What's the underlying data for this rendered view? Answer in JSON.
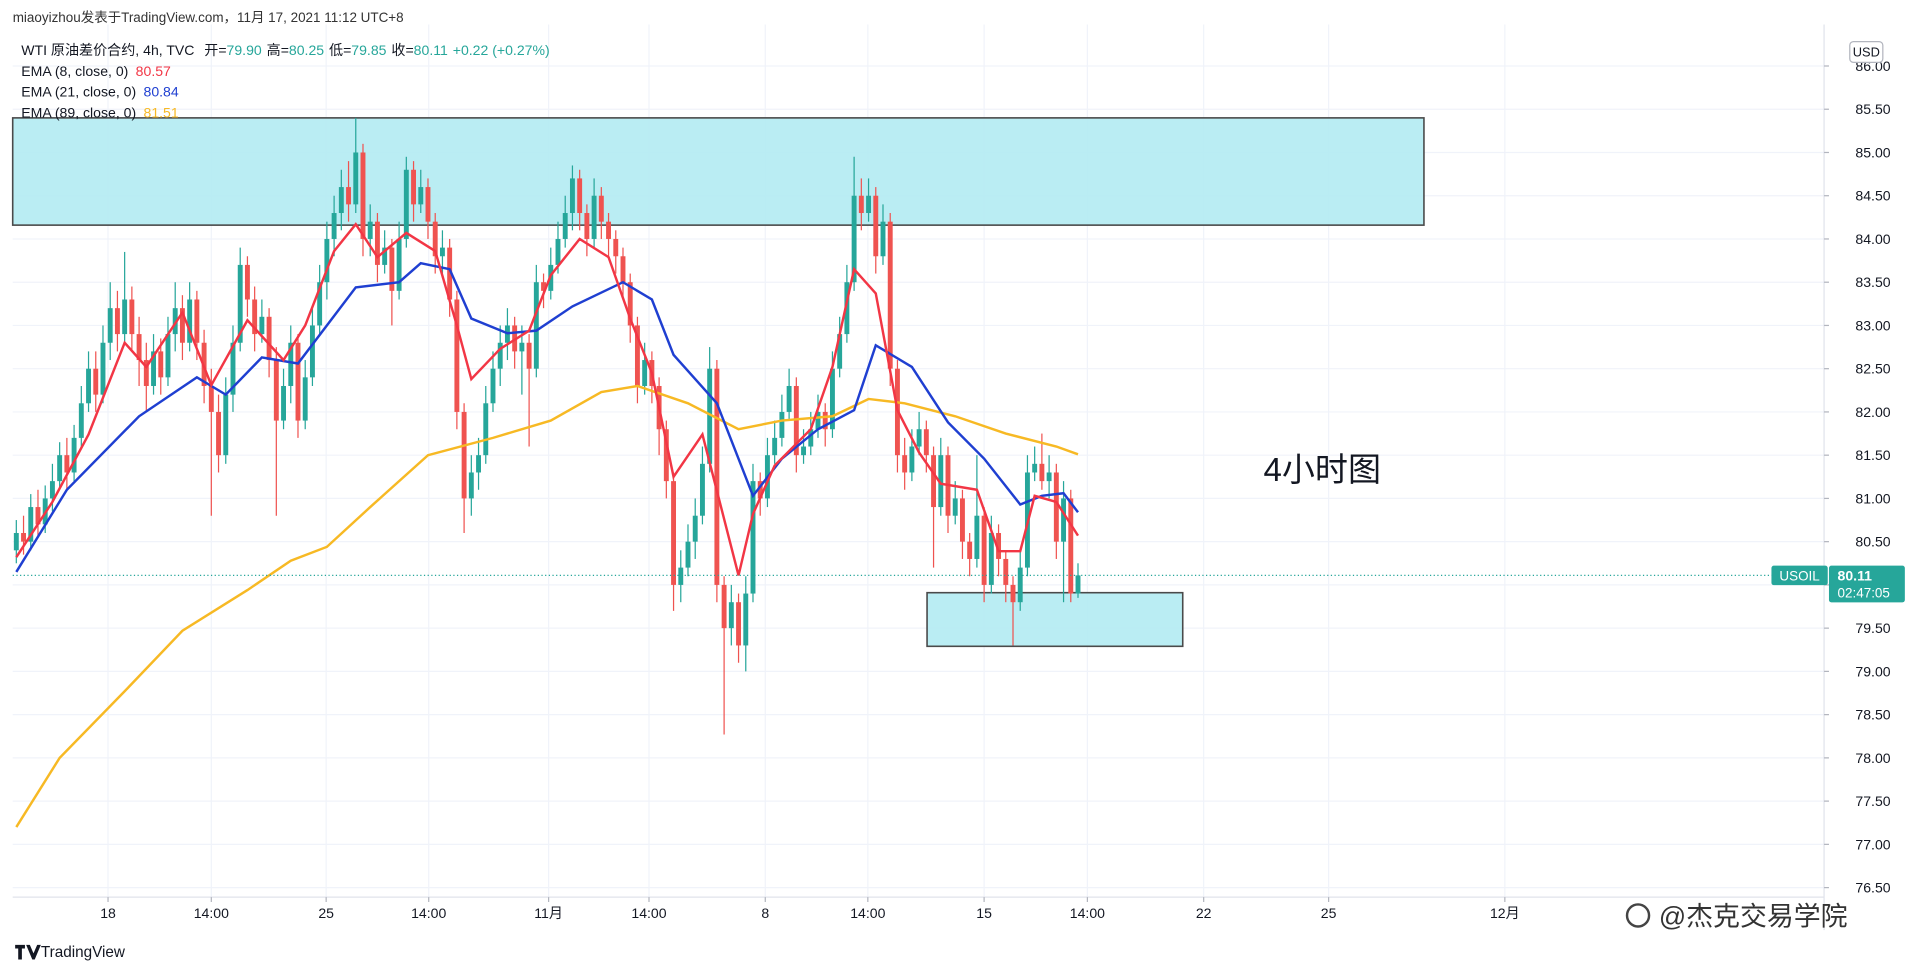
{
  "chart_data": {
    "type": "candlestick",
    "header": "miaoyizhou发表于TradingView.com，11月 17, 2021 11:12 UTC+8",
    "legend": {
      "symbol": "WTI 原油差价合约, 4h, TVC",
      "open_label": "开=",
      "open": "79.90",
      "high_label": "高=",
      "high": "80.25",
      "low_label": "低=",
      "low": "79.85",
      "close_label": "收=",
      "close": "80.11",
      "change": "+0.22 (+0.27%)"
    },
    "currency": "USD",
    "annotation": "4小时图",
    "symbol_badge": "USOIL",
    "last_price": 80.11,
    "countdown": "02:47:05",
    "branding": "TradingView",
    "watermark": "@杰克交易学院",
    "up_color": "#26a69a",
    "down_color": "#ef5350",
    "grid": true,
    "xlim": [
      -0.5,
      250.3
    ],
    "ylim": [
      76.39,
      86.48
    ],
    "yticks": [
      {
        "value": 76.5,
        "label": "76.50"
      },
      {
        "value": 77,
        "label": "77.00"
      },
      {
        "value": 77.5,
        "label": "77.50"
      },
      {
        "value": 78,
        "label": "78.00"
      },
      {
        "value": 78.5,
        "label": "78.50"
      },
      {
        "value": 79,
        "label": "79.00"
      },
      {
        "value": 79.5,
        "label": "79.50"
      },
      {
        "value": 80,
        "label": "80.00"
      },
      {
        "value": 80.5,
        "label": "80.50"
      },
      {
        "value": 81,
        "label": "81.00"
      },
      {
        "value": 81.5,
        "label": "81.50"
      },
      {
        "value": 82,
        "label": "82.00"
      },
      {
        "value": 82.5,
        "label": "82.50"
      },
      {
        "value": 83,
        "label": "83.00"
      },
      {
        "value": 83.5,
        "label": "83.50"
      },
      {
        "value": 84,
        "label": "84.00"
      },
      {
        "value": 84.5,
        "label": "84.50"
      },
      {
        "value": 85,
        "label": "85.00"
      },
      {
        "value": 85.5,
        "label": "85.50"
      },
      {
        "value": 86,
        "label": "86.00"
      }
    ],
    "xticks": [
      {
        "value": 12.7,
        "label": "18"
      },
      {
        "value": 27,
        "label": "14:00"
      },
      {
        "value": 42.9,
        "label": "25"
      },
      {
        "value": 57.1,
        "label": "14:00"
      },
      {
        "value": 73.7,
        "label": "11月"
      },
      {
        "value": 87.6,
        "label": "14:00"
      },
      {
        "value": 103.7,
        "label": "8"
      },
      {
        "value": 117.9,
        "label": "14:00"
      },
      {
        "value": 134,
        "label": "15"
      },
      {
        "value": 148.3,
        "label": "14:00"
      },
      {
        "value": 164.4,
        "label": "22"
      },
      {
        "value": 181.7,
        "label": "25"
      },
      {
        "value": 206.1,
        "label": "12月"
      }
    ],
    "zones": [
      {
        "x": [
          -0.5,
          194.9
        ],
        "y": [
          84.16,
          85.4
        ],
        "color": "#b2ebf2"
      },
      {
        "x": [
          126.1,
          161.5
        ],
        "y": [
          79.29,
          79.91
        ],
        "color": "#b2ebf2"
      }
    ],
    "ohlc": [
      [
        80.4,
        80.75,
        80.25,
        80.6
      ],
      [
        80.6,
        80.8,
        80.35,
        80.5
      ],
      [
        80.5,
        81.05,
        80.4,
        80.9
      ],
      [
        80.9,
        81.1,
        80.55,
        80.7
      ],
      [
        80.7,
        81.15,
        80.6,
        81.0
      ],
      [
        81.0,
        81.4,
        80.85,
        81.2
      ],
      [
        81.2,
        81.65,
        81.1,
        81.5
      ],
      [
        81.5,
        81.7,
        81.1,
        81.3
      ],
      [
        81.3,
        81.85,
        81.2,
        81.7
      ],
      [
        81.7,
        82.3,
        81.6,
        82.1
      ],
      [
        82.1,
        82.7,
        82.0,
        82.5
      ],
      [
        82.5,
        82.7,
        82.0,
        82.2
      ],
      [
        82.2,
        83.0,
        82.1,
        82.8
      ],
      [
        82.8,
        83.5,
        82.6,
        83.2
      ],
      [
        83.2,
        83.4,
        82.7,
        82.9
      ],
      [
        82.9,
        83.85,
        82.8,
        83.3
      ],
      [
        83.3,
        83.45,
        82.7,
        82.9
      ],
      [
        82.9,
        83.1,
        82.3,
        82.6
      ],
      [
        82.6,
        82.8,
        82.0,
        82.3
      ],
      [
        82.3,
        82.9,
        82.2,
        82.7
      ],
      [
        82.7,
        82.85,
        82.2,
        82.4
      ],
      [
        82.4,
        83.1,
        82.3,
        82.9
      ],
      [
        82.9,
        83.5,
        82.7,
        83.2
      ],
      [
        83.2,
        83.35,
        82.6,
        82.8
      ],
      [
        82.8,
        83.5,
        82.7,
        83.3
      ],
      [
        83.3,
        83.4,
        82.6,
        82.8
      ],
      [
        82.8,
        82.95,
        82.1,
        82.3
      ],
      [
        82.3,
        82.5,
        80.8,
        82.0
      ],
      [
        82.0,
        82.2,
        81.3,
        81.5
      ],
      [
        81.5,
        82.4,
        81.4,
        82.2
      ],
      [
        82.2,
        83.0,
        82.0,
        82.8
      ],
      [
        82.8,
        83.9,
        82.7,
        83.7
      ],
      [
        83.7,
        83.8,
        83.1,
        83.3
      ],
      [
        83.3,
        83.45,
        82.7,
        82.9
      ],
      [
        82.9,
        83.3,
        82.8,
        83.1
      ],
      [
        83.1,
        83.2,
        82.4,
        82.6
      ],
      [
        82.6,
        82.75,
        80.8,
        81.9
      ],
      [
        81.9,
        82.5,
        81.8,
        82.3
      ],
      [
        82.3,
        83.0,
        82.1,
        82.8
      ],
      [
        82.8,
        82.9,
        81.7,
        81.9
      ],
      [
        81.9,
        82.6,
        81.8,
        82.4
      ],
      [
        82.4,
        83.2,
        82.3,
        83.0
      ],
      [
        83.0,
        83.7,
        82.9,
        83.5
      ],
      [
        83.5,
        84.2,
        83.3,
        84.0
      ],
      [
        84.0,
        84.5,
        83.8,
        84.3
      ],
      [
        84.3,
        84.8,
        84.1,
        84.6
      ],
      [
        84.6,
        84.9,
        84.2,
        84.4
      ],
      [
        84.4,
        85.4,
        84.3,
        85.0
      ],
      [
        85.0,
        85.1,
        83.8,
        84.0
      ],
      [
        84.0,
        84.4,
        83.8,
        84.2
      ],
      [
        84.2,
        84.3,
        83.5,
        83.7
      ],
      [
        83.7,
        84.1,
        83.6,
        83.9
      ],
      [
        83.9,
        84.0,
        83.0,
        83.4
      ],
      [
        83.4,
        84.2,
        83.3,
        84.0
      ],
      [
        84.0,
        84.95,
        83.9,
        84.8
      ],
      [
        84.8,
        84.9,
        84.2,
        84.4
      ],
      [
        84.4,
        84.8,
        84.3,
        84.6
      ],
      [
        84.6,
        84.7,
        84.0,
        84.2
      ],
      [
        84.2,
        84.3,
        83.6,
        83.8
      ],
      [
        83.8,
        84.1,
        83.6,
        83.9
      ],
      [
        83.9,
        84.0,
        83.1,
        83.3
      ],
      [
        83.3,
        83.4,
        81.8,
        82.0
      ],
      [
        82.0,
        82.1,
        80.6,
        81.0
      ],
      [
        81.0,
        81.5,
        80.8,
        81.3
      ],
      [
        81.3,
        81.7,
        81.1,
        81.5
      ],
      [
        81.5,
        82.3,
        81.4,
        82.1
      ],
      [
        82.1,
        82.7,
        82.0,
        82.5
      ],
      [
        82.5,
        83.0,
        82.3,
        82.8
      ],
      [
        82.8,
        83.2,
        82.6,
        83.0
      ],
      [
        83.0,
        83.1,
        82.5,
        82.7
      ],
      [
        82.7,
        83.0,
        82.2,
        82.8
      ],
      [
        82.8,
        82.9,
        81.6,
        82.5
      ],
      [
        82.5,
        83.7,
        82.4,
        83.5
      ],
      [
        83.5,
        83.6,
        83.2,
        83.4
      ],
      [
        83.4,
        83.9,
        83.3,
        83.7
      ],
      [
        83.7,
        84.2,
        83.6,
        84.0
      ],
      [
        84.0,
        84.5,
        83.9,
        84.3
      ],
      [
        84.3,
        84.85,
        84.1,
        84.7
      ],
      [
        84.7,
        84.8,
        84.1,
        84.3
      ],
      [
        84.3,
        84.4,
        83.8,
        84.0
      ],
      [
        84.0,
        84.7,
        83.9,
        84.5
      ],
      [
        84.5,
        84.6,
        84.0,
        84.2
      ],
      [
        84.2,
        84.3,
        83.8,
        84.0
      ],
      [
        84.0,
        84.1,
        83.6,
        83.8
      ],
      [
        83.8,
        83.9,
        83.3,
        83.5
      ],
      [
        83.5,
        83.6,
        82.8,
        83.0
      ],
      [
        83.0,
        83.1,
        82.1,
        82.3
      ],
      [
        82.3,
        82.8,
        82.2,
        82.6
      ],
      [
        82.6,
        82.7,
        82.1,
        82.3
      ],
      [
        82.3,
        82.4,
        81.5,
        81.8
      ],
      [
        81.8,
        81.9,
        81.0,
        81.2
      ],
      [
        81.2,
        81.3,
        79.7,
        80.0
      ],
      [
        80.0,
        80.4,
        79.8,
        80.2
      ],
      [
        80.2,
        80.7,
        80.1,
        80.5
      ],
      [
        80.5,
        81.0,
        80.3,
        80.8
      ],
      [
        80.8,
        81.6,
        80.7,
        81.4
      ],
      [
        81.4,
        82.75,
        81.3,
        82.5
      ],
      [
        82.5,
        82.6,
        79.8,
        80.0
      ],
      [
        80.0,
        80.1,
        78.27,
        79.5
      ],
      [
        79.5,
        80.0,
        79.3,
        79.8
      ],
      [
        79.8,
        79.9,
        79.1,
        79.3
      ],
      [
        79.3,
        80.1,
        79.0,
        79.9
      ],
      [
        79.9,
        81.4,
        79.8,
        81.2
      ],
      [
        81.2,
        81.3,
        80.8,
        81.0
      ],
      [
        81.0,
        81.7,
        80.9,
        81.5
      ],
      [
        81.5,
        81.9,
        81.4,
        81.7
      ],
      [
        81.7,
        82.2,
        81.6,
        82.0
      ],
      [
        82.0,
        82.5,
        81.9,
        82.3
      ],
      [
        82.3,
        82.4,
        81.3,
        81.5
      ],
      [
        81.5,
        81.8,
        81.4,
        81.6
      ],
      [
        81.6,
        82.0,
        81.5,
        81.8
      ],
      [
        81.8,
        82.2,
        81.7,
        82.0
      ],
      [
        82.0,
        82.1,
        81.6,
        81.8
      ],
      [
        81.8,
        82.7,
        81.7,
        82.5
      ],
      [
        82.5,
        83.1,
        82.4,
        82.9
      ],
      [
        82.9,
        83.7,
        82.8,
        83.5
      ],
      [
        83.5,
        84.95,
        83.4,
        84.5
      ],
      [
        84.5,
        84.7,
        84.1,
        84.3
      ],
      [
        84.3,
        84.7,
        84.2,
        84.5
      ],
      [
        84.5,
        84.6,
        83.6,
        83.8
      ],
      [
        83.8,
        84.4,
        83.7,
        84.2
      ],
      [
        84.2,
        84.3,
        82.3,
        82.5
      ],
      [
        82.5,
        82.6,
        81.3,
        81.5
      ],
      [
        81.5,
        81.7,
        81.1,
        81.3
      ],
      [
        81.3,
        81.8,
        81.2,
        81.6
      ],
      [
        81.6,
        82.0,
        81.5,
        81.8
      ],
      [
        81.8,
        81.9,
        81.3,
        81.5
      ],
      [
        81.5,
        81.6,
        80.2,
        80.9
      ],
      [
        80.9,
        81.7,
        80.8,
        81.5
      ],
      [
        81.5,
        81.6,
        80.6,
        80.8
      ],
      [
        80.8,
        81.2,
        80.7,
        81.0
      ],
      [
        81.0,
        81.1,
        80.3,
        80.5
      ],
      [
        80.5,
        80.6,
        80.1,
        80.3
      ],
      [
        80.3,
        81.5,
        80.2,
        80.8
      ],
      [
        80.8,
        80.9,
        79.8,
        80.0
      ],
      [
        80.0,
        80.8,
        79.9,
        80.6
      ],
      [
        80.6,
        80.7,
        80.1,
        80.3
      ],
      [
        80.3,
        80.4,
        79.8,
        80.0
      ],
      [
        80.0,
        80.1,
        79.3,
        79.8
      ],
      [
        79.8,
        80.4,
        79.7,
        80.2
      ],
      [
        80.2,
        81.5,
        80.1,
        81.3
      ],
      [
        81.3,
        81.6,
        81.2,
        81.4
      ],
      [
        81.4,
        81.75,
        81.1,
        81.2
      ],
      [
        81.2,
        81.5,
        81.0,
        81.3
      ],
      [
        81.3,
        81.4,
        80.3,
        80.5
      ],
      [
        80.5,
        81.2,
        79.8,
        81.0
      ],
      [
        81.0,
        81.1,
        79.8,
        79.9
      ],
      [
        79.9,
        80.25,
        79.85,
        80.11
      ]
    ],
    "series": [
      {
        "name": "EMA (89, close, 0)",
        "color": "#f7b924",
        "legend_value": "81.51",
        "x": [
          0,
          6,
          15,
          23,
          32,
          38,
          43,
          49,
          57,
          66,
          74,
          81,
          86,
          93,
          100,
          106,
          113,
          118,
          123,
          130,
          137,
          144,
          147
        ],
        "values": [
          77.2,
          78.0,
          78.77,
          79.47,
          79.94,
          80.28,
          80.44,
          80.9,
          81.5,
          81.7,
          81.9,
          82.23,
          82.3,
          82.1,
          81.8,
          81.9,
          81.95,
          82.15,
          82.1,
          81.95,
          81.75,
          81.6,
          81.51
        ]
      },
      {
        "name": "EMA (21, close, 0)",
        "color": "#1f3fd1",
        "legend_value": "80.84",
        "x": [
          0,
          7,
          17,
          25,
          29,
          34,
          39,
          47,
          53,
          56,
          60,
          63,
          68,
          72,
          77,
          84,
          88,
          91,
          97,
          102,
          106,
          111,
          116,
          119,
          124,
          129,
          134,
          139,
          142,
          145,
          147
        ],
        "values": [
          80.15,
          81.1,
          81.95,
          82.4,
          82.2,
          82.63,
          82.56,
          83.44,
          83.5,
          83.72,
          83.65,
          83.08,
          82.91,
          82.94,
          83.22,
          83.5,
          83.3,
          82.66,
          82.1,
          81.03,
          81.46,
          81.8,
          82.02,
          82.77,
          82.52,
          81.88,
          81.46,
          80.93,
          81.03,
          81.06,
          80.84
        ]
      },
      {
        "name": "EMA (8, close, 0)",
        "color": "#f23645",
        "legend_value": "80.57",
        "x": [
          0,
          5,
          10,
          15,
          18,
          23,
          27,
          32,
          37,
          40,
          44,
          47,
          50,
          54,
          58,
          61,
          63,
          67,
          71,
          74,
          78,
          82,
          85,
          88,
          91,
          95,
          100,
          102,
          105,
          110,
          113,
          116,
          119,
          122,
          125,
          128,
          133,
          136,
          139,
          141,
          144,
          147
        ],
        "values": [
          80.32,
          80.96,
          81.74,
          82.8,
          82.52,
          83.15,
          82.31,
          83.06,
          82.6,
          83.0,
          83.86,
          84.17,
          83.79,
          84.07,
          83.86,
          83.0,
          82.38,
          82.73,
          82.94,
          83.58,
          84.0,
          83.79,
          83.08,
          82.45,
          81.25,
          81.74,
          80.11,
          80.82,
          81.38,
          81.8,
          82.52,
          83.65,
          83.37,
          82.02,
          81.53,
          81.17,
          81.1,
          80.39,
          80.39,
          81.03,
          80.96,
          80.57
        ]
      }
    ]
  }
}
